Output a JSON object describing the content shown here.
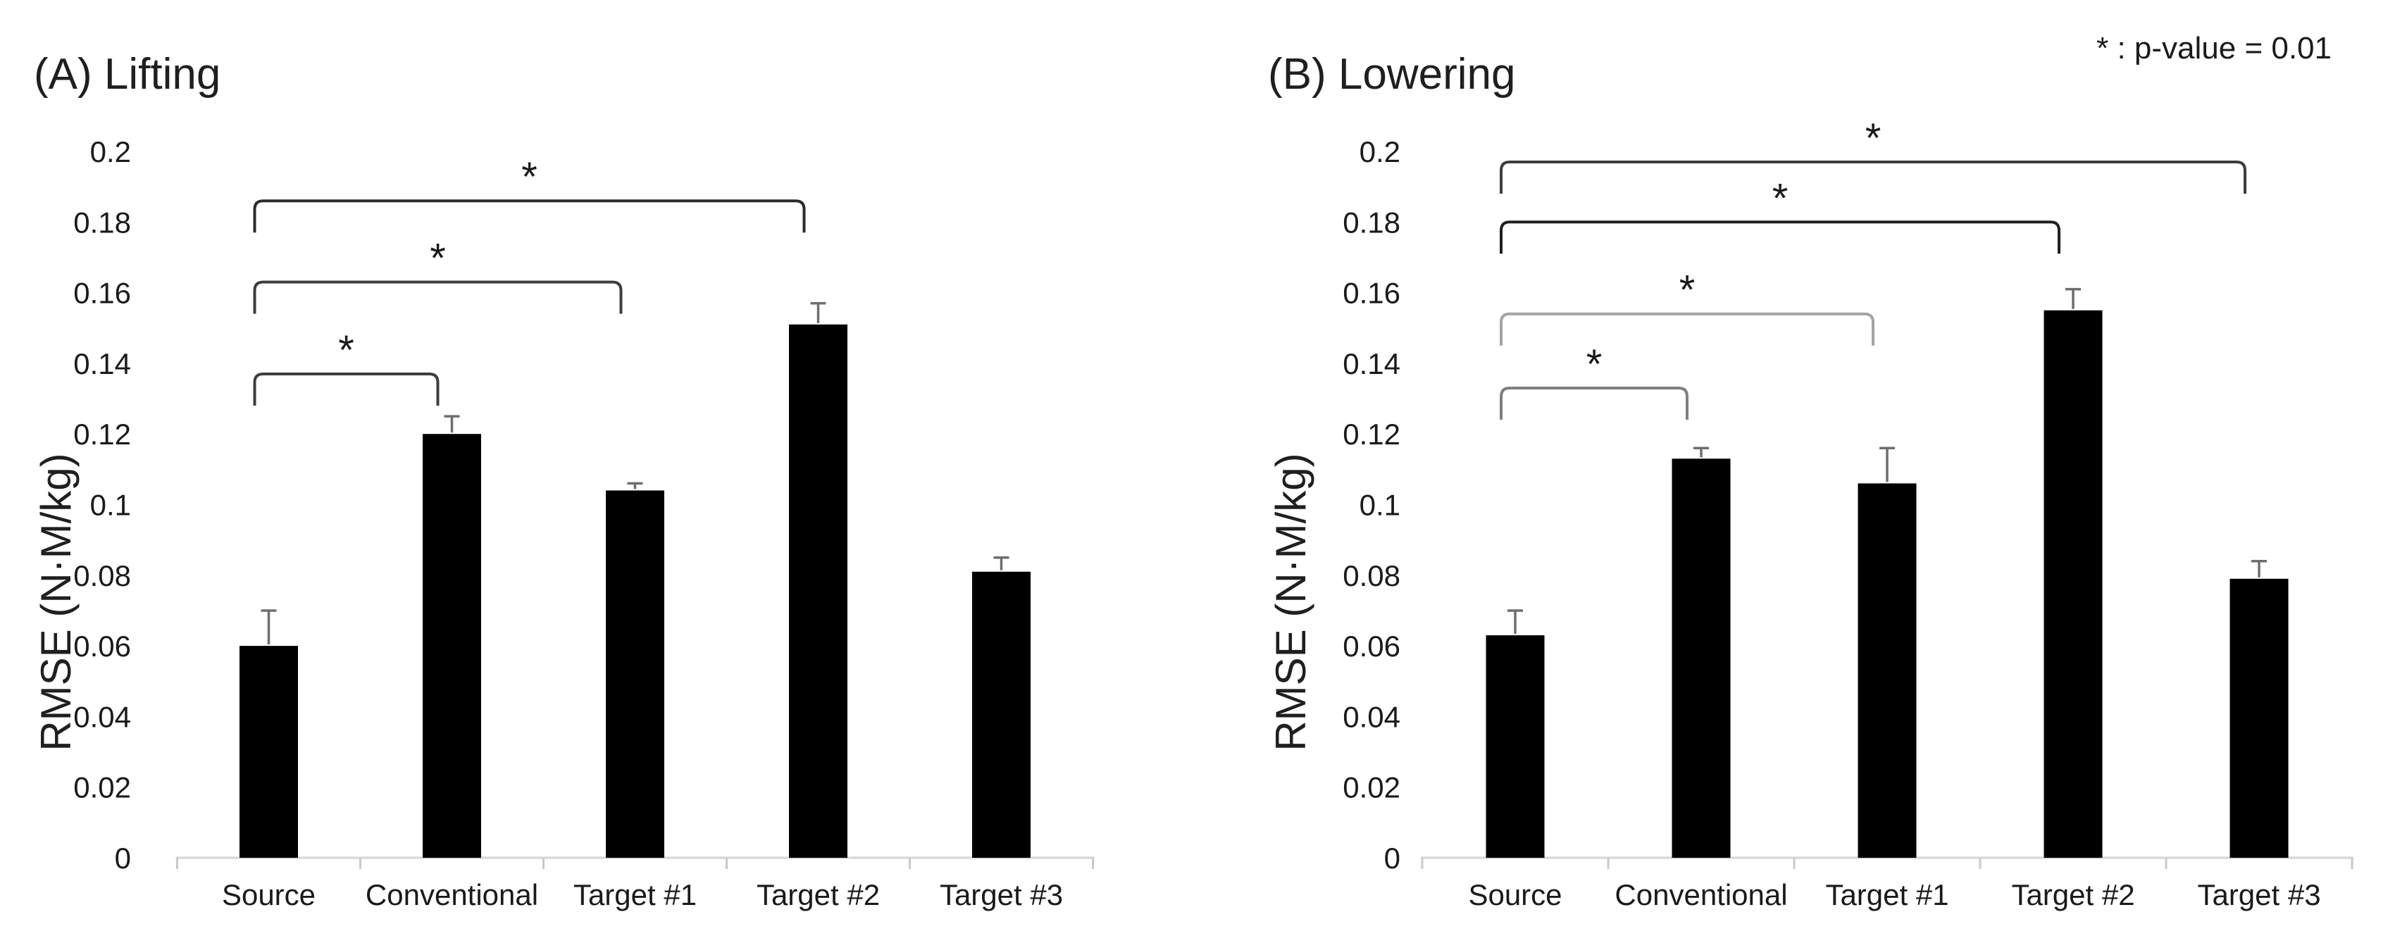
{
  "note": {
    "label": "* : p-value = 0.01"
  },
  "palette": {
    "bar": "#000000",
    "error_bar": "#6e6e6e",
    "baseline": "#d9d9d9",
    "axis_tick": "#c9c9c9",
    "text": "#1a1a1a"
  },
  "chart_data": [
    {
      "type": "bar",
      "title": "(A) Lifting",
      "ylabel": "RMSE (N·M/kg)",
      "xlabel": "",
      "categories": [
        "Source",
        "Conventional",
        "Target #1",
        "Target #2",
        "Target #3"
      ],
      "values": [
        0.06,
        0.12,
        0.104,
        0.151,
        0.081
      ],
      "errors_plus": [
        0.01,
        0.005,
        0.002,
        0.006,
        0.004
      ],
      "ylim": [
        0,
        0.2
      ],
      "ytick_step": 0.02,
      "ytick_labels": [
        "0.2",
        "0.18",
        "0.16",
        "0.14",
        "0.12",
        "0.1",
        "0.08",
        "0.06",
        "0.04",
        "0.02",
        "0"
      ],
      "grid": "off",
      "bar_color": "#000000",
      "brackets": [
        {
          "from": 0,
          "to": 1,
          "level": 0.137,
          "label": "*",
          "color": "#3d3d3d"
        },
        {
          "from": 0,
          "to": 2,
          "level": 0.163,
          "label": "*",
          "color": "#3d3d3d"
        },
        {
          "from": 0,
          "to": 3,
          "level": 0.186,
          "label": "*",
          "color": "#2b2b2b"
        }
      ]
    },
    {
      "type": "bar",
      "title": "(B) Lowering",
      "ylabel": "RMSE (N·M/kg)",
      "xlabel": "",
      "categories": [
        "Source",
        "Conventional",
        "Target #1",
        "Target #2",
        "Target #3"
      ],
      "values": [
        0.063,
        0.113,
        0.106,
        0.155,
        0.079
      ],
      "errors_plus": [
        0.007,
        0.003,
        0.01,
        0.006,
        0.005
      ],
      "ylim": [
        0,
        0.2
      ],
      "ytick_step": 0.02,
      "ytick_labels": [
        "0.2",
        "0.18",
        "0.16",
        "0.14",
        "0.12",
        "0.1",
        "0.08",
        "0.06",
        "0.04",
        "0.02",
        "0"
      ],
      "grid": "off",
      "bar_color": "#000000",
      "brackets": [
        {
          "from": 0,
          "to": 1,
          "level": 0.133,
          "label": "*",
          "color": "#7f7f7f"
        },
        {
          "from": 0,
          "to": 2,
          "level": 0.154,
          "label": "*",
          "color": "#a3a3a3"
        },
        {
          "from": 0,
          "to": 3,
          "level": 0.18,
          "label": "*",
          "color": "#1f1f1f"
        },
        {
          "from": 0,
          "to": 4,
          "level": 0.197,
          "label": "*",
          "color": "#3d3d3d"
        }
      ]
    }
  ]
}
